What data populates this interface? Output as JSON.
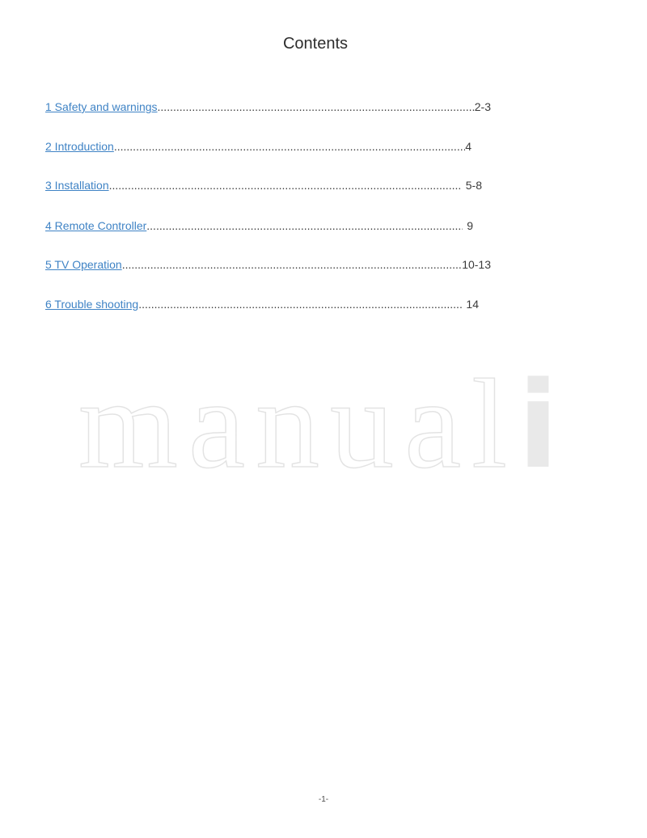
{
  "page": {
    "title": "Contents",
    "page_number": "-1-"
  },
  "toc": {
    "link_color": "#3f83c5",
    "text_color": "#3a3a3a",
    "items": [
      {
        "label": "1 Safety and warnings",
        "pages": "2-3"
      },
      {
        "label": "2 Introduction",
        "pages": "4"
      },
      {
        "label": "3 Installation",
        "pages": "5-8"
      },
      {
        "label": "4 Remote Controller",
        "pages": "9"
      },
      {
        "label": "5 TV Operation",
        "pages": "10-13"
      },
      {
        "label": "6 Trouble shooting",
        "pages": "14"
      }
    ]
  },
  "watermark": {
    "outline_text": "manual",
    "solid_letter": "i",
    "outline_color": "#e3e3e3",
    "solid_color": "#e9e9e9"
  }
}
